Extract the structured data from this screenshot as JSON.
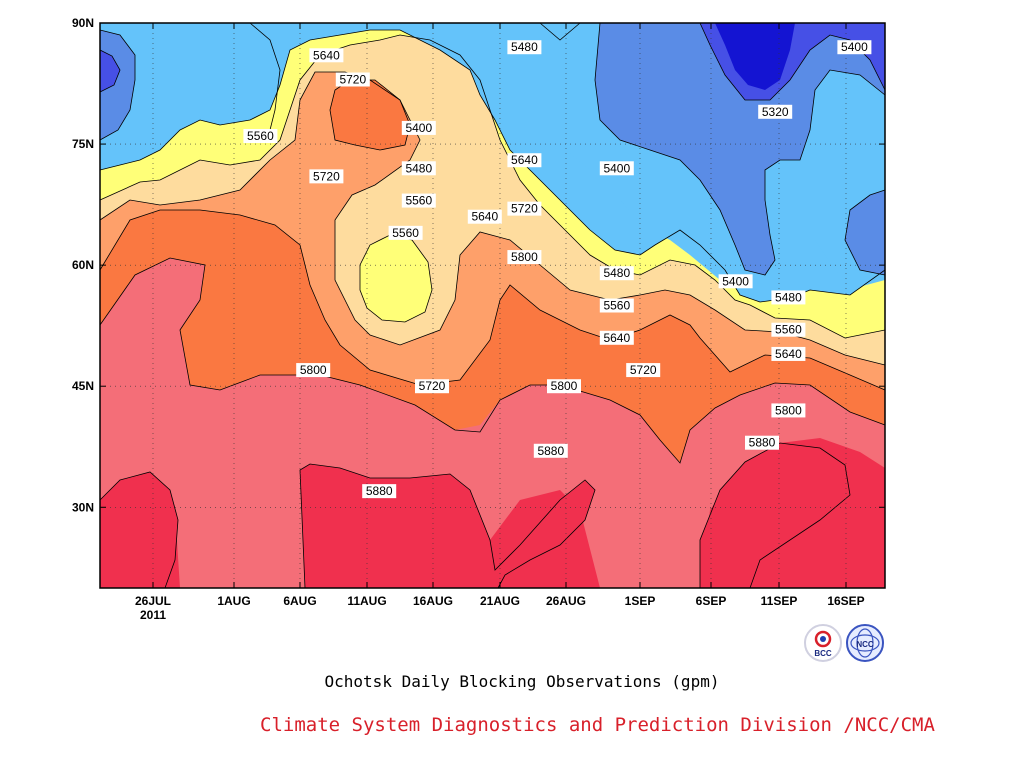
{
  "chart_data": {
    "type": "heatmap",
    "title": "",
    "xlabel": "",
    "ylabel": "",
    "x_tick_labels": [
      "26JUL",
      "1AUG",
      "6AUG",
      "11AUG",
      "16AUG",
      "21AUG",
      "26AUG",
      "1SEP",
      "6SEP",
      "11SEP",
      "16SEP"
    ],
    "x_year_label": "2011",
    "y_tick_labels": [
      "30N",
      "45N",
      "60N",
      "75N",
      "90N"
    ],
    "ylim": [
      20,
      90
    ],
    "contour_levels": [
      5320,
      5400,
      5480,
      5560,
      5640,
      5720,
      5800,
      5880
    ],
    "units": "gpm",
    "contour_labels": [
      {
        "value": "5400",
        "x": "22JUL",
        "lat": 77
      },
      {
        "value": "5480",
        "x": "22JUL",
        "lat": 72
      },
      {
        "value": "5560",
        "x": "22JUL",
        "lat": 68
      },
      {
        "value": "5640",
        "x": "30JUL",
        "lat": 73
      },
      {
        "value": "5560",
        "x": "3AUG",
        "lat": 76
      },
      {
        "value": "5720",
        "x": "30JUL",
        "lat": 67
      },
      {
        "value": "5800",
        "x": "30JUL",
        "lat": 61
      },
      {
        "value": "5640",
        "x": "8AUG",
        "lat": 86
      },
      {
        "value": "5720",
        "x": "10AUG",
        "lat": 83
      },
      {
        "value": "5720",
        "x": "8AUG",
        "lat": 71
      },
      {
        "value": "5560",
        "x": "14AUG",
        "lat": 64
      },
      {
        "value": "5640",
        "x": "20AUG",
        "lat": 66
      },
      {
        "value": "5480",
        "x": "23AUG",
        "lat": 87
      },
      {
        "value": "5400",
        "x": "30AUG",
        "lat": 72
      },
      {
        "value": "5480",
        "x": "30AUG",
        "lat": 59
      },
      {
        "value": "5560",
        "x": "30AUG",
        "lat": 55
      },
      {
        "value": "5640",
        "x": "30AUG",
        "lat": 51
      },
      {
        "value": "5720",
        "x": "1SEP",
        "lat": 47
      },
      {
        "value": "5800",
        "x": "7AUG",
        "lat": 47
      },
      {
        "value": "5720",
        "x": "16AUG",
        "lat": 45
      },
      {
        "value": "5800",
        "x": "26AUG",
        "lat": 45
      },
      {
        "value": "5880",
        "x": "12AUG",
        "lat": 32
      },
      {
        "value": "5880",
        "x": "25AUG",
        "lat": 37
      },
      {
        "value": "5320",
        "x": "11SEP",
        "lat": 79
      },
      {
        "value": "5400",
        "x": "17SEP",
        "lat": 87
      },
      {
        "value": "5400",
        "x": "8SEP",
        "lat": 58
      },
      {
        "value": "5480",
        "x": "12SEP",
        "lat": 56
      },
      {
        "value": "5560",
        "x": "12SEP",
        "lat": 52
      },
      {
        "value": "5640",
        "x": "12SEP",
        "lat": 49
      },
      {
        "value": "5800",
        "x": "12SEP",
        "lat": 42
      },
      {
        "value": "5880",
        "x": "10SEP",
        "lat": 38
      }
    ],
    "color_scale": {
      "5320": "#1414d2",
      "5400": "#4650e6",
      "5480": "#5a8ce6",
      "5560": "#64c3fa",
      "5640": "#ffff78",
      "5720": "#fedc9e",
      "5800": "#fea06a",
      "5880": "#fa7841",
      "above": "#f0304e",
      "band_5800_5880": "#f46e78"
    }
  },
  "caption": "Ochotsk Daily Blocking Observations (gpm)",
  "credit": "Climate System Diagnostics and Prediction Division /NCC/CMA",
  "logos": [
    {
      "name": "bcc-logo",
      "text": "BCC"
    },
    {
      "name": "ncc-logo",
      "text": "NCC"
    }
  ]
}
